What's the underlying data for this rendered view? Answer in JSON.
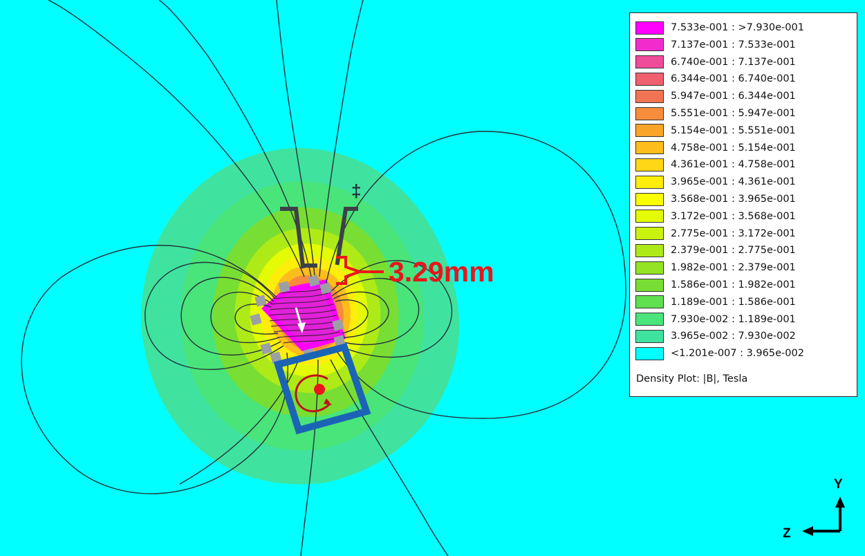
{
  "background_color": "#00ffff",
  "annotation": {
    "dimension_text": "3.29mm",
    "dimension_color": "#e8161b",
    "marker_symbol": "‡"
  },
  "axes_triad": {
    "vertical_label": "Y",
    "horizontal_label": "Z"
  },
  "legend": {
    "title": "Density Plot: |B|, Tesla",
    "entries": [
      {
        "label": "7.533e-001 : >7.930e-001",
        "color": "#ff00ff"
      },
      {
        "label": "7.137e-001 : 7.533e-001",
        "color": "#f22ccc"
      },
      {
        "label": "6.740e-001 : 7.137e-001",
        "color": "#f04a9a"
      },
      {
        "label": "6.344e-001 : 6.740e-001",
        "color": "#f0606e"
      },
      {
        "label": "5.947e-001 : 6.344e-001",
        "color": "#f17452"
      },
      {
        "label": "5.551e-001 : 5.947e-001",
        "color": "#f78c3c"
      },
      {
        "label": "5.154e-001 : 5.551e-001",
        "color": "#fba42a"
      },
      {
        "label": "4.758e-001 : 5.154e-001",
        "color": "#fdbd1d"
      },
      {
        "label": "4.361e-001 : 4.758e-001",
        "color": "#ffd714"
      },
      {
        "label": "3.965e-001 : 4.361e-001",
        "color": "#ffee0c"
      },
      {
        "label": "3.568e-001 : 3.965e-001",
        "color": "#faff00"
      },
      {
        "label": "3.172e-001 : 3.568e-001",
        "color": "#e3fb04"
      },
      {
        "label": "2.775e-001 : 3.172e-001",
        "color": "#c9f20e"
      },
      {
        "label": "2.379e-001 : 2.775e-001",
        "color": "#aeea18"
      },
      {
        "label": "1.982e-001 : 2.379e-001",
        "color": "#94e324"
      },
      {
        "label": "1.586e-001 : 1.982e-001",
        "color": "#79de33"
      },
      {
        "label": "1.189e-001 : 1.586e-001",
        "color": "#5fe04f"
      },
      {
        "label": "7.930e-002 : 1.189e-001",
        "color": "#49e47a"
      },
      {
        "label": "3.965e-002 : 7.930e-002",
        "color": "#3fe39f"
      },
      {
        "label": "<1.201e-007 : 3.965e-002",
        "color": "#00ffff"
      }
    ]
  }
}
